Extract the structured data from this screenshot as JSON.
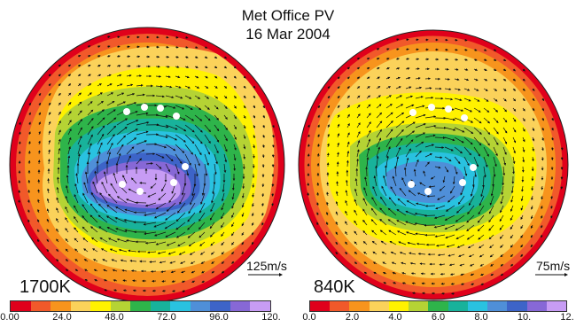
{
  "title": {
    "line1": "Met Office PV",
    "line2": "16 Mar 2004"
  },
  "colors": [
    "#e0001b",
    "#f1592a",
    "#f7941d",
    "#fbd25a",
    "#fff200",
    "#b5d334",
    "#2eb44a",
    "#18b29b",
    "#29c2e0",
    "#4f8fd8",
    "#3d64c8",
    "#8768d6",
    "#c79cf4"
  ],
  "maps": [
    {
      "level": "1700K",
      "speed_label": "125m/s",
      "ticks": [
        "0.00",
        "24.0",
        "48.0",
        "72.0",
        "96.0",
        "120."
      ]
    },
    {
      "level": "840K",
      "speed_label": "75m/s",
      "ticks": [
        "0.0",
        "2.0",
        "4.0",
        "6.0",
        "8.0",
        "10.",
        "12."
      ]
    }
  ]
}
